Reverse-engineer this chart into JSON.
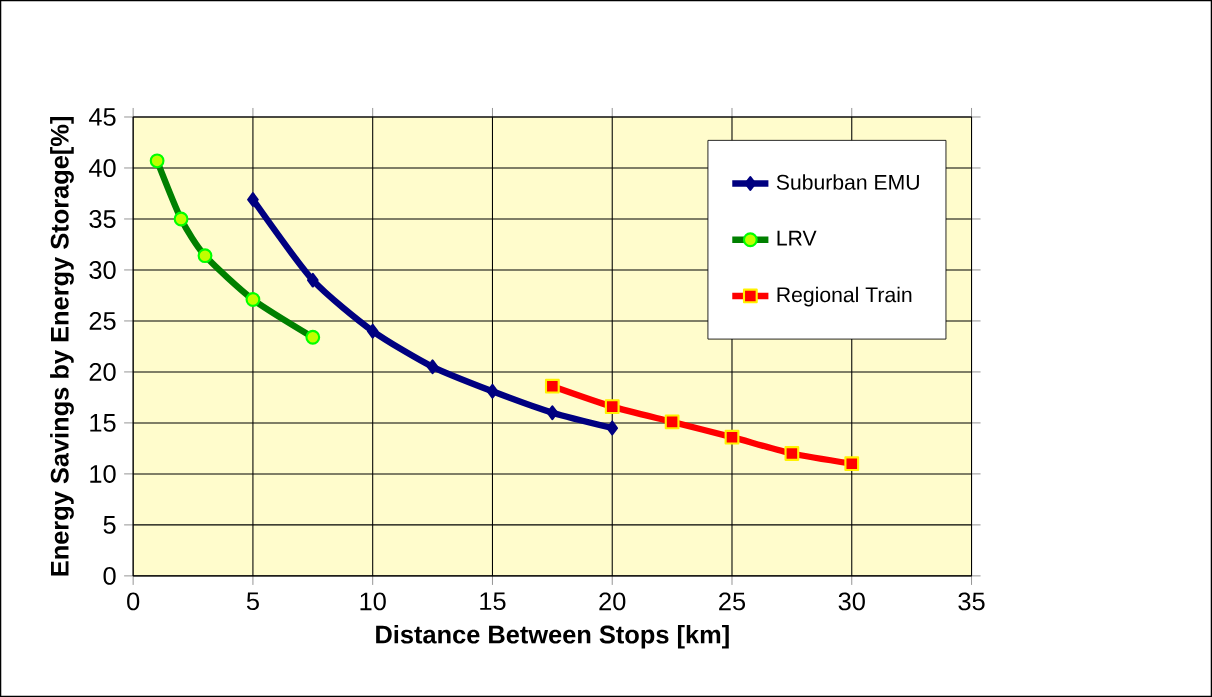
{
  "chart_data": {
    "type": "line",
    "xlabel": "Distance Between Stops [km]",
    "ylabel": "Energy Savings by Energy Storage[%]",
    "xlim": [
      0,
      35
    ],
    "ylim": [
      0,
      45
    ],
    "xticks": [
      0,
      5,
      10,
      15,
      20,
      25,
      30,
      35
    ],
    "yticks": [
      0,
      5,
      10,
      15,
      20,
      25,
      30,
      35,
      40,
      45
    ],
    "grid": true,
    "legend": "top right",
    "series": [
      {
        "name": "Suburban EMU",
        "color": "#000080",
        "marker": "diamond",
        "x": [
          5,
          7.5,
          10,
          12.5,
          15,
          17.5,
          20
        ],
        "values": [
          36.9,
          29.0,
          24.0,
          20.5,
          18.1,
          16.0,
          14.5
        ]
      },
      {
        "name": "LRV",
        "color": "#008000",
        "marker": "circle",
        "x": [
          1,
          2,
          3,
          5,
          7.5
        ],
        "values": [
          40.7,
          35.0,
          31.4,
          27.1,
          23.4
        ]
      },
      {
        "name": "Regional Train",
        "color": "#ff0000",
        "marker": "square",
        "x": [
          17.5,
          20,
          22.5,
          25,
          27.5,
          30
        ],
        "values": [
          18.6,
          16.6,
          15.1,
          13.6,
          12.0,
          11.0
        ]
      }
    ]
  }
}
